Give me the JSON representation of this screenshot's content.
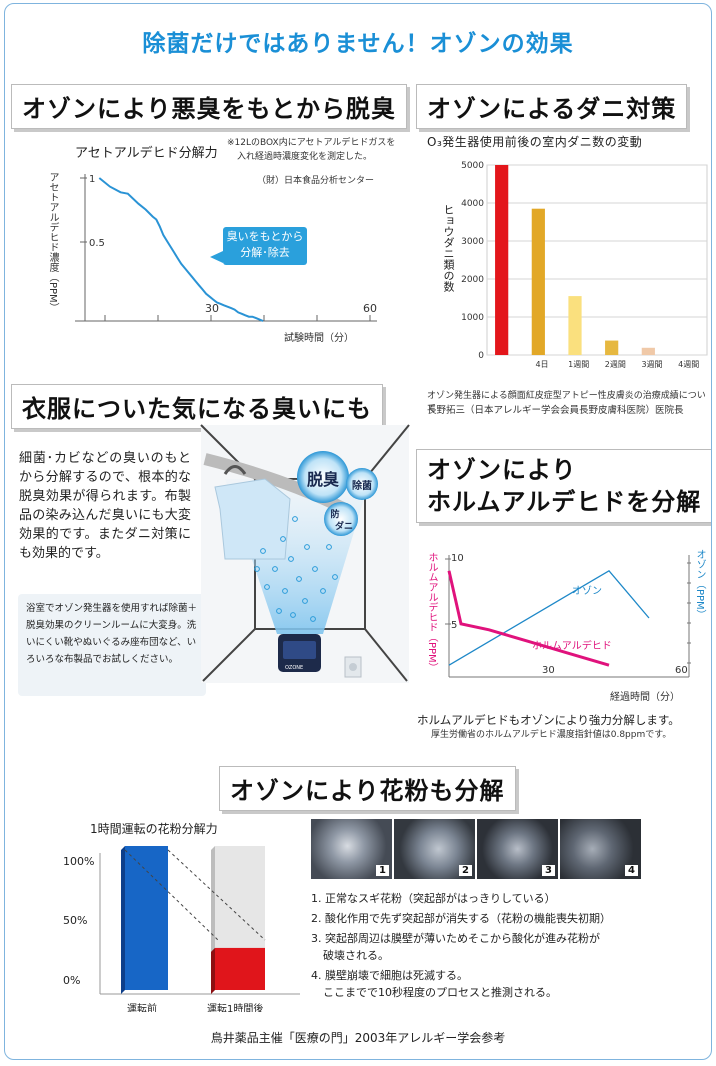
{
  "main_title": "除菌だけではありません！オゾンの効果",
  "sec1": {
    "heading": "オゾンにより悪臭をもとから脱臭",
    "chart_title": "アセトアルデヒド分解力",
    "note_line1": "※12LのBOX内にアセトアルデヒドガスを",
    "note_line2": "入れ経過時濃度変化を測定した。",
    "source": "（財）日本食品分析センター",
    "ylabel": "アセトアルデヒド濃度（PPM）",
    "xlabel": "試験時間（分）",
    "callout_line1": "臭いをもとから",
    "callout_line2": "分解･除去"
  },
  "sec2": {
    "heading": "オゾンによるダニ対策",
    "chart_title": "O₃発生器使用前後の室内ダニ数の変動",
    "ylabel": "ヒョウダニ類の数",
    "caption_line1": "オゾン発生器による顔面紅皮症型アトピー性皮膚炎の治療成績について",
    "caption_line2": "長野拓三（日本アレルギー学会会員長野皮膚科医院）医院長"
  },
  "sec3": {
    "heading": "衣服についた気になる臭いにも",
    "body": "細菌･カビなどの臭いのもとから分解するので、根本的な脱臭効果が得られます。布製品の染み込んだ臭いにも大変効果的です。またダニ対策にも効果的です。",
    "note": "浴室でオゾン発生器を使用すれば除菌＋脱臭効果のクリーンルームに大変身。洗いにくい靴やぬいぐるみ座布団など、いろいろな布製品でお試しください。",
    "bubble_deodor": "脱臭",
    "bubble_sterilize": "除菌",
    "bubble_mite_1": "防",
    "bubble_mite_2": "ダニ",
    "device_label": "OZONE"
  },
  "sec4": {
    "heading_line1": "オゾンにより",
    "heading_line2": "ホルムアルデヒドを分解",
    "left_axis": "ホルムアルデヒド（PPM）",
    "right_axis": "オゾン（PPM）",
    "xlabel": "経過時間（分）",
    "caption_line1": "ホルムアルデヒドもオゾンにより強力分解します。",
    "caption_line2": "厚生労働省のホルムアルデヒド濃度指針値は0.8ppmです。"
  },
  "sec5": {
    "heading": "オゾンにより花粉も分解",
    "chart_title": "1時間運転の花粉分解力",
    "photo_nums": [
      "1",
      "2",
      "3",
      "4"
    ],
    "list": [
      "1. 正常なスギ花粉（突起部がはっきりしている）",
      "2. 酸化作用で先ず突起部が消失する（花粉の機能喪失初期）",
      "3. 突起部周辺は膜壁が薄いためそこから酸化が進み花粉が",
      "破壊される。",
      "4. 膜壁崩壊で細胞は死滅する。",
      "ここまでで10秒程度のプロセスと推測される。"
    ],
    "footer": "鳥井薬品主催「医療の門」2003年アレルギー学会参考"
  },
  "chart_data": [
    {
      "type": "line",
      "title": "アセトアルデヒド分解力",
      "xlabel": "試験時間（分）",
      "ylabel": "アセトアルデヒド濃度（PPM）",
      "x_ticks": [
        "30",
        "60"
      ],
      "y_ticks": [
        "1",
        "0.5"
      ],
      "xlim": [
        -20,
        60
      ],
      "ylim": [
        0,
        1.1
      ],
      "series": [
        {
          "x": [
            -16,
            -13,
            -10,
            -8,
            -5,
            -3,
            -1,
            0,
            1,
            2,
            3,
            4,
            5,
            6,
            7,
            8,
            9,
            10,
            11,
            12,
            13,
            14,
            15,
            16,
            17,
            18,
            19,
            20,
            21,
            22,
            23,
            24,
            25,
            26,
            27,
            28,
            29,
            30
          ],
          "y": [
            1.0,
            0.94,
            0.9,
            0.89,
            0.82,
            0.78,
            0.73,
            0.71,
            0.66,
            0.6,
            0.56,
            0.52,
            0.48,
            0.44,
            0.4,
            0.37,
            0.34,
            0.31,
            0.28,
            0.25,
            0.22,
            0.19,
            0.17,
            0.15,
            0.13,
            0.12,
            0.11,
            0.1,
            0.09,
            0.08,
            0.06,
            0.05,
            0.04,
            0.03,
            0.03,
            0.02,
            0.01,
            0.0
          ]
        }
      ]
    },
    {
      "type": "bar",
      "title": "O₃発生器使用前後の室内ダニ数の変動",
      "ylabel": "ヒョウダニ類の数",
      "categories": [
        "",
        "4日",
        "1週間",
        "2週間",
        "3週間",
        "4週間"
      ],
      "values": [
        5000,
        3850,
        1550,
        380,
        190,
        0
      ],
      "ylim": [
        0,
        5000
      ],
      "y_ticks": [
        0,
        1000,
        2000,
        3000,
        4000,
        5000
      ],
      "colors": [
        "#e3161b",
        "#e2a827",
        "#fae07e",
        "#e6b840",
        "#f0c9a8",
        "#dddddd"
      ]
    },
    {
      "type": "line",
      "xlabel": "経過時間（分）",
      "x_ticks": [
        "30",
        "60"
      ],
      "left_y_ticks": [
        "10",
        "5"
      ],
      "series": [
        {
          "name": "オゾン",
          "x": [
            0,
            10,
            25,
            35,
            40,
            50
          ],
          "y": [
            1,
            3,
            6,
            8,
            9,
            5
          ]
        },
        {
          "name": "ホルムアルデヒド",
          "x": [
            0,
            3,
            10,
            20,
            30,
            40
          ],
          "y": [
            9,
            4.5,
            4,
            3,
            2,
            1
          ]
        }
      ],
      "colors": [
        "#1e88c8",
        "#e0127c"
      ]
    },
    {
      "type": "bar",
      "title": "1時間運転の花粉分解力",
      "categories": [
        "運転前",
        "運転1時間後"
      ],
      "values": [
        100,
        32
      ],
      "y_ticks": [
        "100%",
        "50%",
        "0%"
      ],
      "ylim": [
        0,
        100
      ],
      "colors": [
        "#1766c6",
        "#e0151b"
      ]
    }
  ]
}
